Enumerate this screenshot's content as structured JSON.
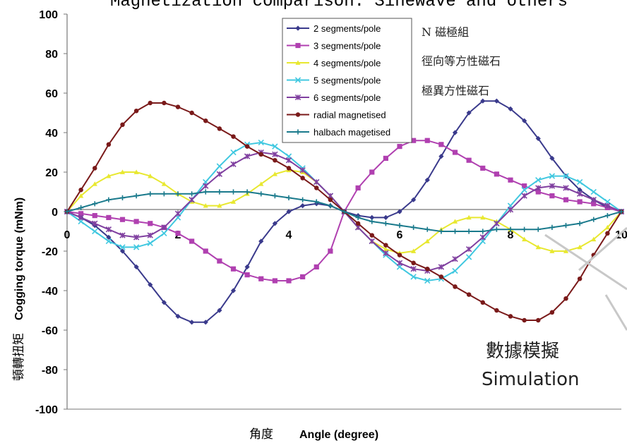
{
  "chart_data": {
    "type": "line",
    "title": "Magnetization comparison: Sinewave and others",
    "xlabel_zh": "角度",
    "xlabel": "Angle (degree)",
    "ylabel_zh": "頓轉扭矩",
    "ylabel": "Cogging torque (mNm)",
    "xlim": [
      0,
      10
    ],
    "ylim": [
      -100,
      100
    ],
    "x_ticks": [
      "0",
      "2",
      "4",
      "6",
      "8",
      "10"
    ],
    "y_ticks": [
      "100",
      "80",
      "60",
      "40",
      "20",
      "0",
      "-20",
      "-40",
      "-60",
      "-80",
      "-100"
    ],
    "grid": false,
    "legend_position": "top-center",
    "x": [
      0,
      0.25,
      0.5,
      0.75,
      1,
      1.25,
      1.5,
      1.75,
      2,
      2.25,
      2.5,
      2.75,
      3,
      3.25,
      3.5,
      3.75,
      4,
      4.25,
      4.5,
      4.75,
      5,
      5.25,
      5.5,
      5.75,
      6,
      6.25,
      6.5,
      6.75,
      7,
      7.25,
      7.5,
      7.75,
      8,
      8.25,
      8.5,
      8.75,
      9,
      9.25,
      9.5,
      9.75,
      10
    ],
    "series": [
      {
        "name": "2 segments/pole",
        "color": "#3a3a8c",
        "marker": "diamond",
        "values": [
          0,
          -3,
          -7,
          -13,
          -20,
          -28,
          -37,
          -46,
          -53,
          -56,
          -56,
          -50,
          -40,
          -28,
          -15,
          -6,
          0,
          3,
          4,
          3,
          0,
          -2,
          -3,
          -3,
          0,
          6,
          16,
          28,
          40,
          50,
          56,
          56,
          52,
          46,
          37,
          27,
          18,
          11,
          6,
          2,
          0
        ]
      },
      {
        "name": "3 segments/pole",
        "color": "#b040b0",
        "marker": "square",
        "values": [
          0,
          -1,
          -2,
          -3,
          -4,
          -5,
          -6,
          -8,
          -11,
          -15,
          -20,
          -25,
          -29,
          -32,
          -34,
          -35,
          -35,
          -33,
          -28,
          -20,
          0,
          12,
          20,
          27,
          33,
          36,
          36,
          34,
          30,
          26,
          22,
          19,
          16,
          13,
          10,
          8,
          6,
          5,
          4,
          2,
          0
        ]
      },
      {
        "name": "4 segments/pole",
        "color": "#e8e830",
        "marker": "triangle",
        "values": [
          0,
          8,
          14,
          18,
          20,
          20,
          18,
          14,
          9,
          5,
          3,
          3,
          5,
          9,
          14,
          19,
          21,
          20,
          15,
          8,
          0,
          -8,
          -15,
          -19,
          -21,
          -20,
          -15,
          -9,
          -5,
          -3,
          -3,
          -5,
          -9,
          -14,
          -18,
          -20,
          -20,
          -18,
          -14,
          -8,
          0
        ]
      },
      {
        "name": "5 segments/pole",
        "color": "#40c8e0",
        "marker": "x",
        "values": [
          0,
          -5,
          -10,
          -15,
          -18,
          -18,
          -16,
          -11,
          -3,
          6,
          15,
          23,
          30,
          34,
          35,
          33,
          28,
          22,
          15,
          8,
          0,
          -8,
          -15,
          -22,
          -28,
          -33,
          -35,
          -34,
          -30,
          -23,
          -15,
          -6,
          3,
          11,
          16,
          18,
          18,
          15,
          10,
          5,
          0
        ]
      },
      {
        "name": "6 segments/pole",
        "color": "#8040a0",
        "marker": "star",
        "values": [
          0,
          -3,
          -6,
          -9,
          -12,
          -13,
          -12,
          -8,
          -1,
          6,
          13,
          19,
          24,
          28,
          30,
          29,
          26,
          21,
          15,
          8,
          0,
          -8,
          -15,
          -21,
          -26,
          -29,
          -30,
          -28,
          -24,
          -19,
          -13,
          -6,
          1,
          8,
          12,
          13,
          12,
          9,
          6,
          3,
          0
        ]
      },
      {
        "name": "radial magnetised",
        "color": "#7a1a1a",
        "marker": "circle",
        "values": [
          0,
          11,
          22,
          34,
          44,
          51,
          55,
          55,
          53,
          50,
          46,
          42,
          38,
          33,
          29,
          26,
          22,
          17,
          12,
          6,
          0,
          -6,
          -12,
          -17,
          -22,
          -26,
          -29,
          -33,
          -38,
          -42,
          -46,
          -50,
          -53,
          -55,
          -55,
          -51,
          -44,
          -34,
          -22,
          -11,
          0
        ]
      },
      {
        "name": "halbach magetised",
        "color": "#1a7a8c",
        "marker": "plus",
        "values": [
          0,
          2,
          4,
          6,
          7,
          8,
          9,
          9,
          9,
          9,
          10,
          10,
          10,
          10,
          9,
          8,
          7,
          6,
          5,
          3,
          0,
          -3,
          -5,
          -6,
          -7,
          -8,
          -9,
          -10,
          -10,
          -10,
          -10,
          -9,
          -9,
          -9,
          -9,
          -8,
          -7,
          -6,
          -4,
          -2,
          0
        ]
      }
    ],
    "annotations": {
      "note_lines": [
        "N 磁極組",
        "徑向等方性磁石",
        "極異方性磁石"
      ],
      "sim_label_zh": "數據模擬",
      "sim_label": "Simulation"
    }
  }
}
